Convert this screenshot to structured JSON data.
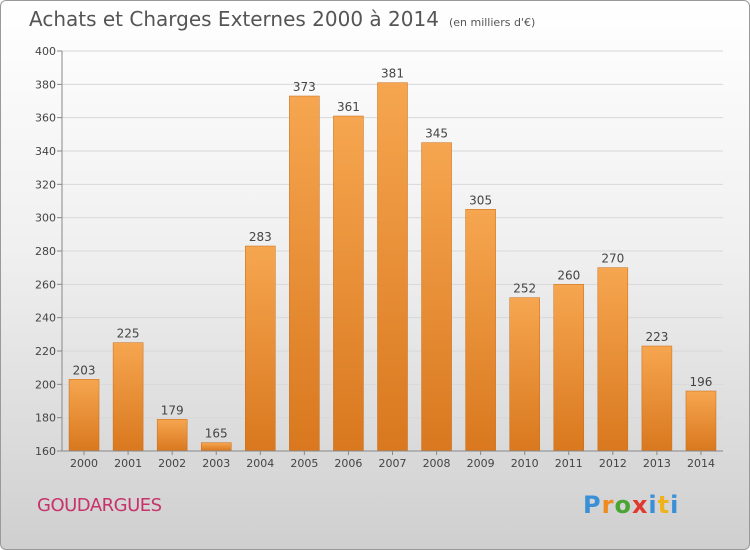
{
  "header": {
    "title": "Achats et Charges Externes 2000 à 2014",
    "subtitle": "(en milliers d'€)"
  },
  "footer": {
    "town": "GOUDARGUES",
    "logo_text": "Proxiti"
  },
  "colors": {
    "bar_light": "#f6a650",
    "bar_dark": "#d9781e",
    "grid": "#d8d8d8",
    "axis": "#888888",
    "town": "#c8326a"
  },
  "chart_data": {
    "type": "bar",
    "title": "Achats et Charges Externes 2000 à 2014",
    "subtitle": "(en milliers d'€)",
    "xlabel": "",
    "ylabel": "",
    "categories": [
      "2000",
      "2001",
      "2002",
      "2003",
      "2004",
      "2005",
      "2006",
      "2007",
      "2008",
      "2009",
      "2010",
      "2011",
      "2012",
      "2013",
      "2014"
    ],
    "values": [
      203,
      225,
      179,
      165,
      283,
      373,
      361,
      381,
      345,
      305,
      252,
      260,
      270,
      223,
      196
    ],
    "ylim": [
      160,
      400
    ],
    "yticks": [
      160,
      180,
      200,
      220,
      240,
      260,
      280,
      300,
      320,
      340,
      360,
      380,
      400
    ],
    "grid": true,
    "legend": "none"
  }
}
